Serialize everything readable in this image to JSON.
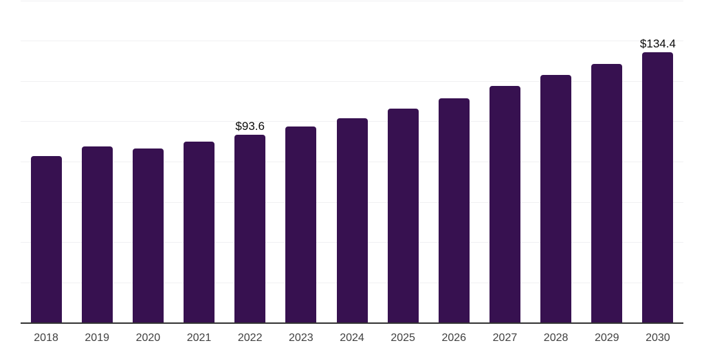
{
  "chart_data": {
    "type": "bar",
    "title": "",
    "xlabel": "",
    "ylabel": "",
    "categories": [
      "2018",
      "2019",
      "2020",
      "2021",
      "2022",
      "2023",
      "2024",
      "2025",
      "2026",
      "2027",
      "2028",
      "2029",
      "2030"
    ],
    "values": [
      82.9,
      87.7,
      86.7,
      90.1,
      93.6,
      97.6,
      101.7,
      106.5,
      111.6,
      117.7,
      123.2,
      128.7,
      134.4
    ],
    "bar_labels": [
      "",
      "",
      "",
      "",
      "$93.6",
      "",
      "",
      "",
      "",
      "",
      "",
      "",
      "$134.4"
    ],
    "ylim": [
      0,
      160
    ],
    "ytick_step": 20,
    "grid": true,
    "y_axis_labels_visible": false,
    "legend": false,
    "colors": {
      "bar": "#371150",
      "axis_line": "#333333",
      "gridline": "#f0f0f2",
      "data_label": "#0a0a0a",
      "tick_label": "#404040",
      "background": "#ffffff"
    }
  }
}
